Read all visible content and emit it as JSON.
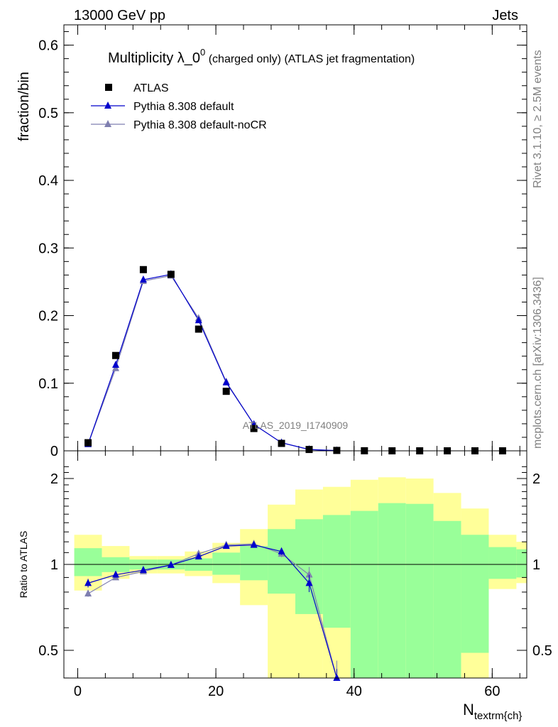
{
  "header": {
    "left": "13000 GeV pp",
    "right": "Jets"
  },
  "side": {
    "rivet": "Rivet 3.1.10, ≥ 2.5M events",
    "mcplots": "mcplots.cern.ch [arXiv:1306.3436]"
  },
  "colors": {
    "atlas": "#000000",
    "default": "#0000cc",
    "nocr": "#7f7fb0",
    "band_yellow": "#ffff99",
    "band_green": "#99ff99"
  },
  "chart_data": [
    {
      "type": "scatter",
      "title_main": "Multiplicity λ_0",
      "title_sup": "0",
      "title_rest": " (charged only) (ATLAS jet fragmentation)",
      "ylabel": "fraction/bin",
      "watermark": "ATLAS_2019_I1740909",
      "xlim": [
        -2,
        65
      ],
      "ylim": [
        0,
        0.63
      ],
      "yticks": [
        0,
        0.1,
        0.2,
        0.3,
        0.4,
        0.5,
        0.6
      ],
      "ytick_labels": [
        "0",
        "0.1",
        "0.2",
        "0.3",
        "0.4",
        "0.5",
        "0.6"
      ],
      "legend": [
        "ATLAS",
        "Pythia 8.308 default",
        "Pythia 8.308 default-noCR"
      ],
      "x": [
        1.5,
        5.5,
        9.5,
        13.5,
        17.5,
        21.5,
        25.5,
        29.5,
        33.5,
        37.5,
        41.5,
        45.5,
        49.5,
        53.5,
        57.5,
        61.5
      ],
      "series": [
        {
          "name": "ATLAS",
          "values": [
            0.012,
            0.141,
            0.268,
            0.261,
            0.18,
            0.088,
            0.033,
            0.011,
            0.002,
            0.0006,
            0.0001,
            0.0,
            0.0,
            0.0,
            0.0,
            0.0
          ]
        },
        {
          "name": "Pythia 8.308 default",
          "values": [
            0.01,
            0.127,
            0.253,
            0.261,
            0.193,
            0.101,
            0.039,
            0.012,
            0.002,
            0.0003
          ]
        },
        {
          "name": "Pythia 8.308 default-noCR",
          "values": [
            0.0095,
            0.122,
            0.251,
            0.259,
            0.196,
            0.102,
            0.039,
            0.012,
            0.002,
            0.0004
          ]
        }
      ]
    },
    {
      "type": "line",
      "ylabel": "Ratio to ATLAS",
      "xlabel_main": "N",
      "xlabel_sub": "textrm{ch}",
      "xlim": [
        -2,
        65
      ],
      "ylim": [
        0.35,
        2.25
      ],
      "yticks": [
        0.5,
        1,
        2
      ],
      "ytick_labels": [
        "0.5",
        "1",
        "2"
      ],
      "xticks": [
        0,
        20,
        40,
        60
      ],
      "xtick_labels": [
        "0",
        "20",
        "40",
        "60"
      ],
      "bins": [
        {
          "lo": -0.5,
          "hi": 3.5,
          "g_lo": 0.91,
          "g_hi": 1.14,
          "y_lo": 0.81,
          "y_hi": 1.27
        },
        {
          "lo": 3.5,
          "hi": 7.5,
          "g_lo": 0.94,
          "g_hi": 1.06,
          "y_lo": 0.89,
          "y_hi": 1.16
        },
        {
          "lo": 7.5,
          "hi": 11.5,
          "g_lo": 0.96,
          "g_hi": 1.04,
          "y_lo": 0.93,
          "y_hi": 1.07
        },
        {
          "lo": 11.5,
          "hi": 15.5,
          "g_lo": 0.96,
          "g_hi": 1.04,
          "y_lo": 0.93,
          "y_hi": 1.07
        },
        {
          "lo": 15.5,
          "hi": 19.5,
          "g_lo": 0.95,
          "g_hi": 1.05,
          "y_lo": 0.91,
          "y_hi": 1.11
        },
        {
          "lo": 19.5,
          "hi": 23.5,
          "g_lo": 0.92,
          "g_hi": 1.1,
          "y_lo": 0.86,
          "y_hi": 1.19
        },
        {
          "lo": 23.5,
          "hi": 27.5,
          "g_lo": 0.88,
          "g_hi": 1.16,
          "y_lo": 0.72,
          "y_hi": 1.33
        },
        {
          "lo": 27.5,
          "hi": 31.5,
          "g_lo": 0.79,
          "g_hi": 1.33,
          "y_lo": 0.3,
          "y_hi": 1.62
        },
        {
          "lo": 31.5,
          "hi": 35.5,
          "g_lo": 0.67,
          "g_hi": 1.44,
          "y_lo": 0.3,
          "y_hi": 1.83
        },
        {
          "lo": 35.5,
          "hi": 39.5,
          "g_lo": 0.6,
          "g_hi": 1.49,
          "y_lo": 0.3,
          "y_hi": 1.87
        },
        {
          "lo": 39.5,
          "hi": 43.5,
          "g_lo": 0.4,
          "g_hi": 1.54,
          "y_lo": 0.3,
          "y_hi": 1.98
        },
        {
          "lo": 43.5,
          "hi": 47.5,
          "g_lo": 0.4,
          "g_hi": 1.64,
          "y_lo": 0.3,
          "y_hi": 2.02
        },
        {
          "lo": 47.5,
          "hi": 51.5,
          "g_lo": 0.4,
          "g_hi": 1.63,
          "y_lo": 0.3,
          "y_hi": 2.0
        },
        {
          "lo": 51.5,
          "hi": 55.5,
          "g_lo": 0.4,
          "g_hi": 1.42,
          "y_lo": 0.3,
          "y_hi": 1.78
        },
        {
          "lo": 55.5,
          "hi": 59.5,
          "g_lo": 0.49,
          "g_hi": 1.27,
          "y_lo": 0.3,
          "y_hi": 1.57
        },
        {
          "lo": 59.5,
          "hi": 63.5,
          "g_lo": 0.89,
          "g_hi": 1.15,
          "y_lo": 0.82,
          "y_hi": 1.27
        },
        {
          "lo": 63.5,
          "hi": 67.5,
          "g_lo": 0.9,
          "g_hi": 1.13,
          "y_lo": 0.86,
          "y_hi": 1.2
        }
      ],
      "x": [
        1.5,
        5.5,
        9.5,
        13.5,
        17.5,
        21.5,
        25.5,
        29.5,
        33.5,
        37.5
      ],
      "series": [
        {
          "name": "Pythia 8.308 default",
          "values": [
            0.86,
            0.92,
            0.955,
            0.995,
            1.065,
            1.16,
            1.17,
            1.11,
            0.86,
            0.33
          ],
          "err": [
            0.03,
            0.015,
            0.01,
            0.01,
            0.015,
            0.015,
            0.02,
            0.03,
            0.06,
            0.1
          ]
        },
        {
          "name": "Pythia 8.308 default-noCR",
          "values": [
            0.79,
            0.9,
            0.945,
            0.995,
            1.09,
            1.17,
            1.18,
            1.09,
            0.92,
            0.36
          ],
          "err": [
            0.02,
            0.015,
            0.01,
            0.01,
            0.015,
            0.015,
            0.02,
            0.03,
            0.06,
            0.1
          ]
        }
      ]
    }
  ]
}
